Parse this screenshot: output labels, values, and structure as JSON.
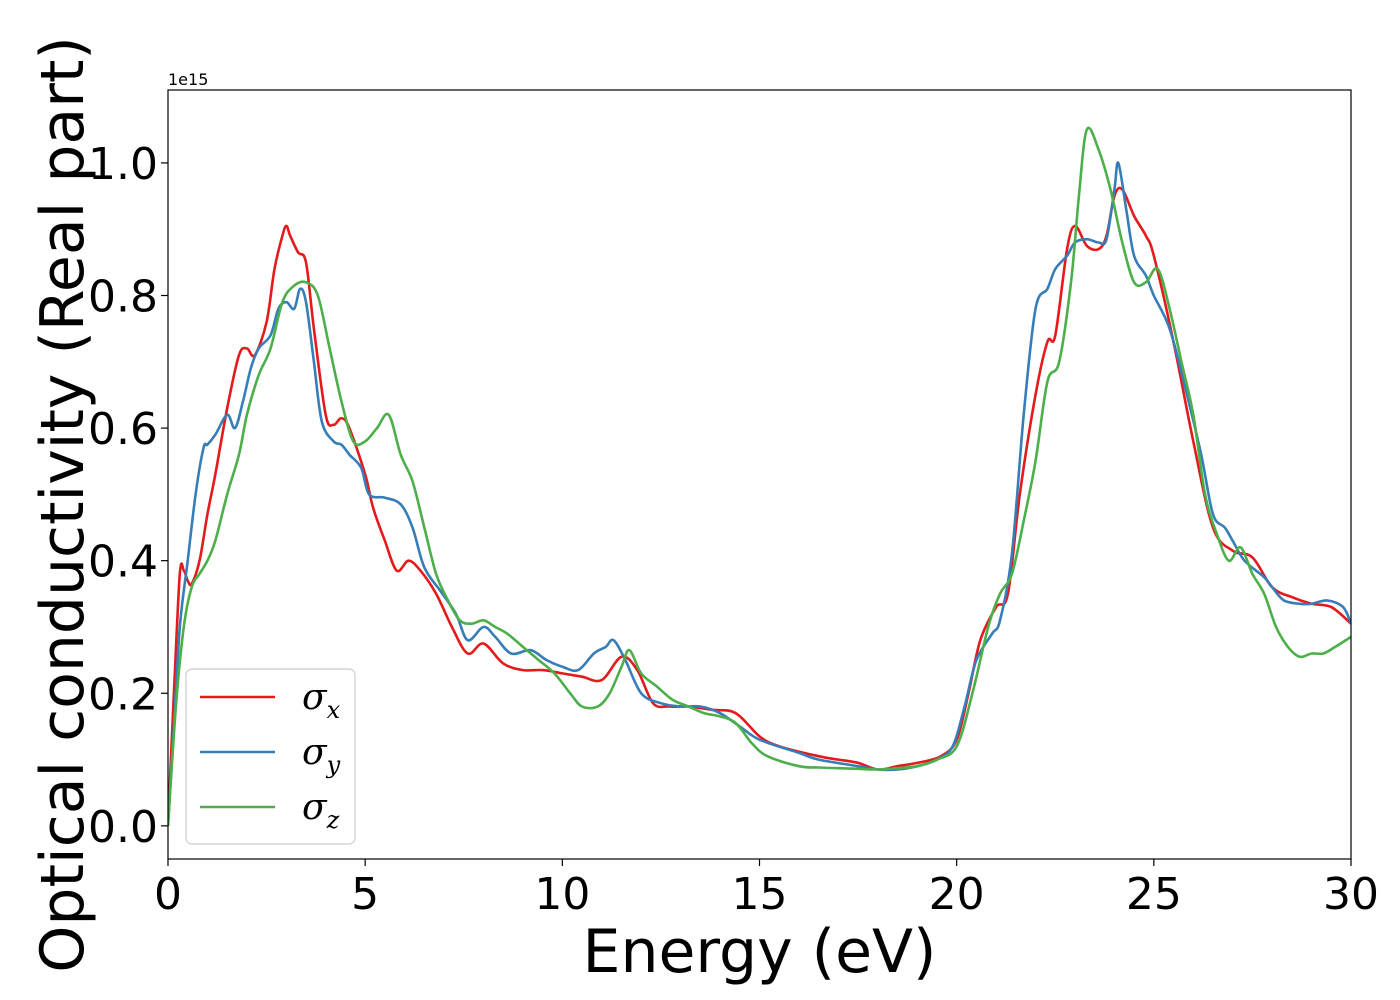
{
  "chart_data": {
    "type": "line",
    "title": "",
    "xlabel": "Energy (eV)",
    "ylabel": "Optical conductivity (Real part)",
    "y_offset_text": "1e15",
    "y_scale_multiplier": 1000000000000000.0,
    "xlim": [
      0,
      30
    ],
    "ylim": [
      -0.05,
      1.11
    ],
    "x_ticks": [
      0,
      5,
      10,
      15,
      20,
      25,
      30
    ],
    "y_ticks": [
      0.0,
      0.2,
      0.4,
      0.6,
      0.8,
      1.0
    ],
    "x_tick_labels": [
      "0",
      "5",
      "10",
      "15",
      "20",
      "25",
      "30"
    ],
    "y_tick_labels": [
      "0.0",
      "0.2",
      "0.4",
      "0.6",
      "0.8",
      "1.0"
    ],
    "grid": false,
    "legend_position": "lower-left",
    "series": [
      {
        "name": "σx",
        "legend_symbol": "σ",
        "legend_subscript": "x",
        "color": "#e41a1c",
        "x": [
          0,
          0.15,
          0.3,
          0.4,
          0.5,
          0.6,
          0.8,
          1.0,
          1.2,
          1.5,
          1.8,
          2.0,
          2.2,
          2.5,
          2.7,
          2.9,
          3.0,
          3.1,
          3.3,
          3.5,
          3.7,
          4.0,
          4.2,
          4.4,
          4.6,
          5.0,
          5.2,
          5.5,
          5.8,
          6.1,
          6.4,
          6.8,
          7.2,
          7.6,
          8.0,
          8.5,
          9.0,
          9.5,
          10.0,
          10.5,
          11.0,
          11.5,
          11.9,
          12.3,
          12.7,
          13.2,
          13.8,
          14.4,
          15.0,
          15.5,
          16.5,
          17.0,
          17.5,
          18.0,
          18.5,
          19.0,
          19.6,
          20.0,
          20.3,
          20.6,
          21.0,
          21.3,
          21.6,
          22.0,
          22.3,
          22.5,
          22.8,
          23.0,
          23.3,
          23.6,
          23.8,
          24.0,
          24.2,
          24.5,
          24.8,
          25.0,
          25.5,
          26.0,
          26.5,
          27.0,
          27.5,
          28.0,
          28.5,
          29.0,
          29.5,
          30.0
        ],
        "values": [
          0.0,
          0.2,
          0.38,
          0.385,
          0.37,
          0.365,
          0.4,
          0.47,
          0.53,
          0.63,
          0.71,
          0.72,
          0.71,
          0.76,
          0.84,
          0.89,
          0.905,
          0.89,
          0.865,
          0.85,
          0.75,
          0.62,
          0.605,
          0.615,
          0.6,
          0.53,
          0.48,
          0.43,
          0.385,
          0.4,
          0.385,
          0.35,
          0.3,
          0.26,
          0.275,
          0.245,
          0.235,
          0.235,
          0.23,
          0.225,
          0.22,
          0.255,
          0.235,
          0.185,
          0.18,
          0.18,
          0.175,
          0.17,
          0.135,
          0.12,
          0.105,
          0.1,
          0.095,
          0.085,
          0.09,
          0.095,
          0.105,
          0.13,
          0.2,
          0.28,
          0.33,
          0.35,
          0.5,
          0.65,
          0.73,
          0.74,
          0.87,
          0.905,
          0.875,
          0.87,
          0.89,
          0.95,
          0.96,
          0.92,
          0.89,
          0.86,
          0.73,
          0.58,
          0.45,
          0.415,
          0.405,
          0.36,
          0.345,
          0.335,
          0.33,
          0.305
        ]
      },
      {
        "name": "σy",
        "legend_symbol": "σ",
        "legend_subscript": "y",
        "color": "#377eb8",
        "x": [
          0,
          0.15,
          0.3,
          0.5,
          0.7,
          0.9,
          1.0,
          1.2,
          1.5,
          1.7,
          1.9,
          2.1,
          2.3,
          2.6,
          2.8,
          3.0,
          3.2,
          3.35,
          3.5,
          3.7,
          3.9,
          4.2,
          4.4,
          4.6,
          4.9,
          5.1,
          5.5,
          5.9,
          6.2,
          6.5,
          6.9,
          7.3,
          7.6,
          8.0,
          8.3,
          8.7,
          9.2,
          9.6,
          10.0,
          10.4,
          10.8,
          11.1,
          11.3,
          11.6,
          12.0,
          12.5,
          13.0,
          13.5,
          14.0,
          14.5,
          15.0,
          16.0,
          16.5,
          17.5,
          18.0,
          18.5,
          19.0,
          19.5,
          19.9,
          20.2,
          20.5,
          20.9,
          21.1,
          21.4,
          21.7,
          22.0,
          22.3,
          22.5,
          22.8,
          23.0,
          23.3,
          23.6,
          23.8,
          24.0,
          24.1,
          24.3,
          24.5,
          24.8,
          25.0,
          25.4,
          25.8,
          26.2,
          26.5,
          26.8,
          27.0,
          27.3,
          27.8,
          28.0,
          28.3,
          28.7,
          29.0,
          29.4,
          29.8,
          30.0
        ],
        "values": [
          0.0,
          0.15,
          0.3,
          0.4,
          0.5,
          0.57,
          0.575,
          0.59,
          0.62,
          0.6,
          0.64,
          0.69,
          0.72,
          0.74,
          0.78,
          0.79,
          0.78,
          0.81,
          0.79,
          0.7,
          0.61,
          0.58,
          0.575,
          0.56,
          0.54,
          0.5,
          0.495,
          0.485,
          0.45,
          0.39,
          0.355,
          0.32,
          0.28,
          0.3,
          0.285,
          0.26,
          0.265,
          0.25,
          0.24,
          0.235,
          0.26,
          0.27,
          0.28,
          0.25,
          0.2,
          0.185,
          0.18,
          0.18,
          0.17,
          0.15,
          0.13,
          0.11,
          0.1,
          0.09,
          0.085,
          0.085,
          0.09,
          0.1,
          0.12,
          0.18,
          0.25,
          0.29,
          0.31,
          0.41,
          0.62,
          0.78,
          0.81,
          0.84,
          0.86,
          0.88,
          0.885,
          0.88,
          0.885,
          0.96,
          1.0,
          0.93,
          0.86,
          0.83,
          0.8,
          0.75,
          0.66,
          0.56,
          0.47,
          0.45,
          0.43,
          0.4,
          0.375,
          0.36,
          0.34,
          0.335,
          0.335,
          0.34,
          0.33,
          0.305
        ]
      },
      {
        "name": "σz",
        "legend_symbol": "σ",
        "legend_subscript": "z",
        "color": "#4daf4a",
        "x": [
          0,
          0.2,
          0.4,
          0.6,
          0.8,
          1.0,
          1.2,
          1.5,
          1.8,
          2.0,
          2.3,
          2.6,
          2.9,
          3.2,
          3.5,
          3.8,
          4.1,
          4.4,
          4.7,
          5.0,
          5.3,
          5.6,
          5.9,
          6.2,
          6.5,
          6.8,
          7.1,
          7.4,
          7.7,
          8.0,
          8.3,
          8.6,
          9.0,
          9.4,
          9.8,
          10.2,
          10.5,
          10.9,
          11.2,
          11.5,
          11.7,
          12.0,
          12.4,
          12.8,
          13.2,
          13.6,
          14.0,
          14.4,
          14.8,
          15.2,
          16.0,
          16.5,
          17.0,
          17.5,
          18.0,
          18.5,
          19.0,
          19.5,
          20.0,
          20.4,
          20.8,
          21.1,
          21.4,
          21.7,
          22.0,
          22.3,
          22.6,
          22.9,
          23.1,
          23.3,
          23.6,
          23.9,
          24.2,
          24.5,
          24.8,
          25.1,
          25.4,
          25.7,
          26.0,
          26.3,
          26.6,
          26.9,
          27.2,
          27.5,
          27.8,
          28.1,
          28.4,
          28.7,
          29.0,
          29.3,
          29.6,
          30.0
        ],
        "values": [
          0.0,
          0.18,
          0.3,
          0.36,
          0.38,
          0.4,
          0.43,
          0.5,
          0.56,
          0.62,
          0.68,
          0.72,
          0.79,
          0.815,
          0.82,
          0.8,
          0.72,
          0.64,
          0.58,
          0.58,
          0.6,
          0.62,
          0.56,
          0.52,
          0.45,
          0.38,
          0.34,
          0.31,
          0.305,
          0.31,
          0.3,
          0.29,
          0.27,
          0.25,
          0.23,
          0.2,
          0.18,
          0.18,
          0.2,
          0.24,
          0.265,
          0.23,
          0.21,
          0.19,
          0.18,
          0.17,
          0.165,
          0.155,
          0.125,
          0.105,
          0.09,
          0.088,
          0.087,
          0.086,
          0.085,
          0.087,
          0.09,
          0.1,
          0.12,
          0.2,
          0.3,
          0.35,
          0.38,
          0.46,
          0.55,
          0.67,
          0.7,
          0.82,
          0.95,
          1.05,
          1.02,
          0.96,
          0.88,
          0.82,
          0.82,
          0.84,
          0.78,
          0.7,
          0.62,
          0.5,
          0.44,
          0.4,
          0.42,
          0.38,
          0.35,
          0.3,
          0.27,
          0.255,
          0.26,
          0.26,
          0.27,
          0.285
        ]
      }
    ]
  }
}
